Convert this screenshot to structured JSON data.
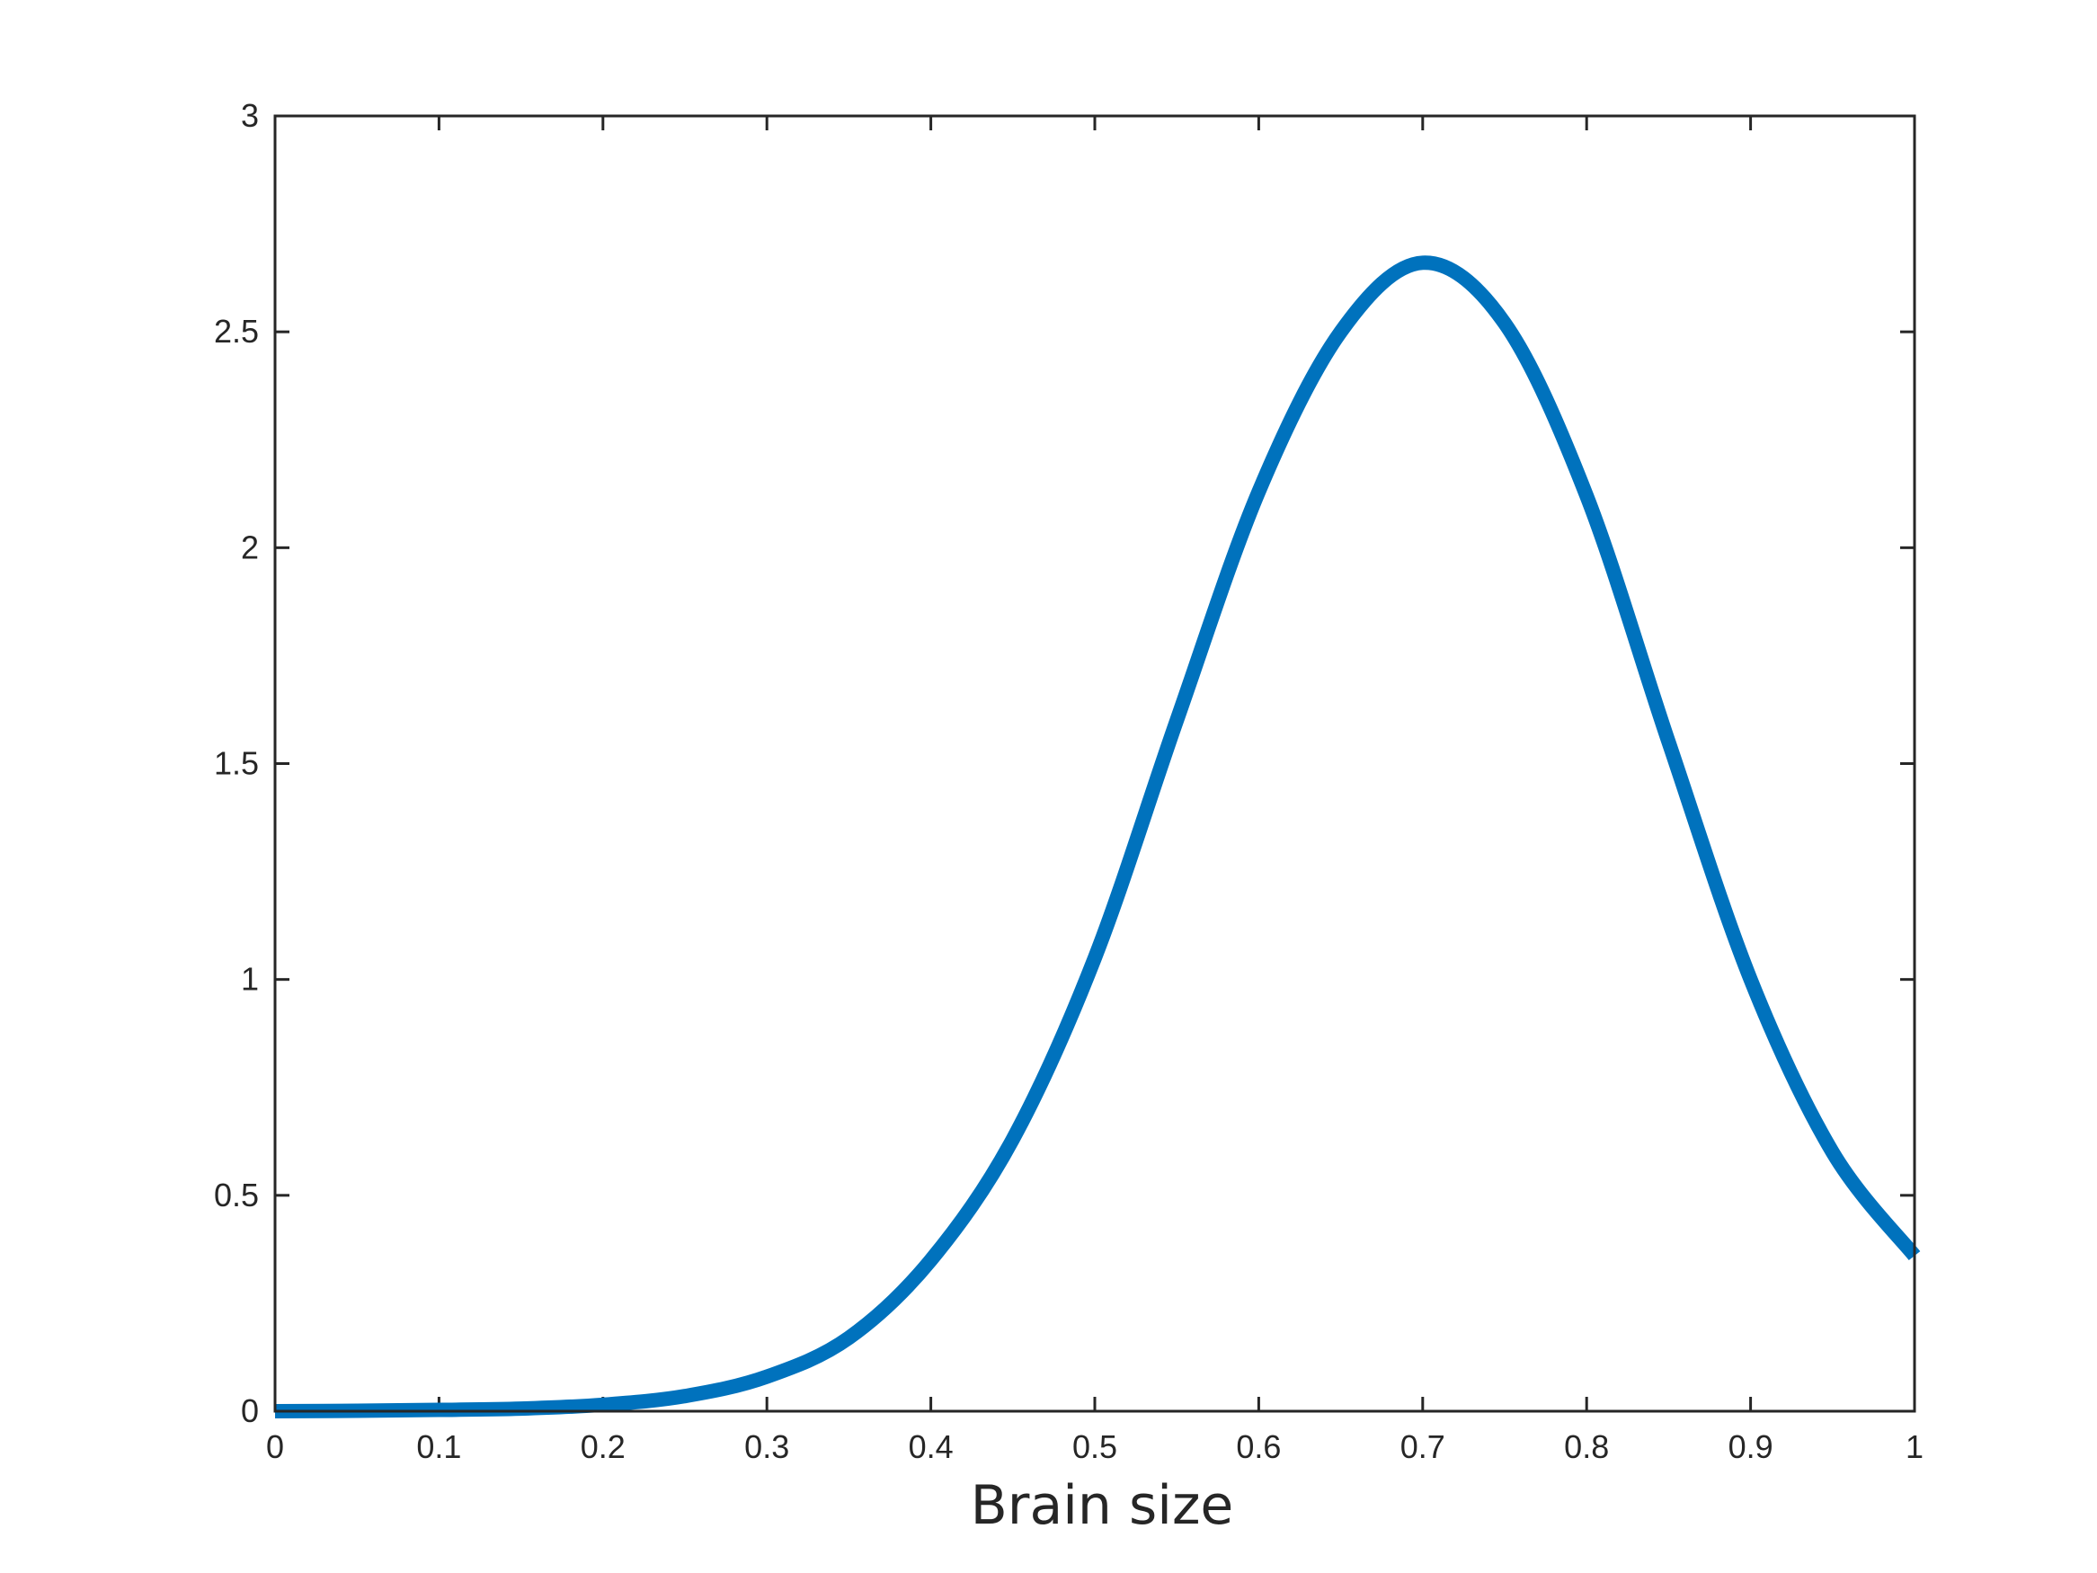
{
  "chart_data": {
    "type": "line",
    "title": "",
    "xlabel": "Brain size",
    "ylabel": "",
    "xlim": [
      0,
      1
    ],
    "ylim": [
      0,
      3
    ],
    "xticks": [
      0,
      0.1,
      0.2,
      0.3,
      0.4,
      0.5,
      0.6,
      0.7,
      0.8,
      0.9,
      1
    ],
    "xtick_labels": [
      "0",
      "0.1",
      "0.2",
      "0.3",
      "0.4",
      "0.5",
      "0.6",
      "0.7",
      "0.8",
      "0.9",
      "1"
    ],
    "yticks": [
      0,
      0.5,
      1,
      1.5,
      2,
      2.5,
      3
    ],
    "ytick_labels": [
      "0",
      "0.5",
      "1",
      "1.5",
      "2",
      "2.5",
      "3"
    ],
    "grid": false,
    "legend": "none",
    "line_color": "#0072BD",
    "series": [
      {
        "x": [
          0,
          0.05,
          0.1,
          0.15,
          0.2,
          0.25,
          0.3,
          0.35,
          0.4,
          0.45,
          0.5,
          0.55,
          0.6,
          0.65,
          0.7,
          0.75,
          0.8,
          0.85,
          0.9,
          0.95,
          1
        ],
        "values": [
          0.0,
          0.001,
          0.003,
          0.006,
          0.015,
          0.035,
          0.08,
          0.17,
          0.35,
          0.63,
          1.05,
          1.6,
          2.13,
          2.5,
          2.66,
          2.52,
          2.12,
          1.55,
          1.0,
          0.6,
          0.36
        ]
      }
    ]
  }
}
